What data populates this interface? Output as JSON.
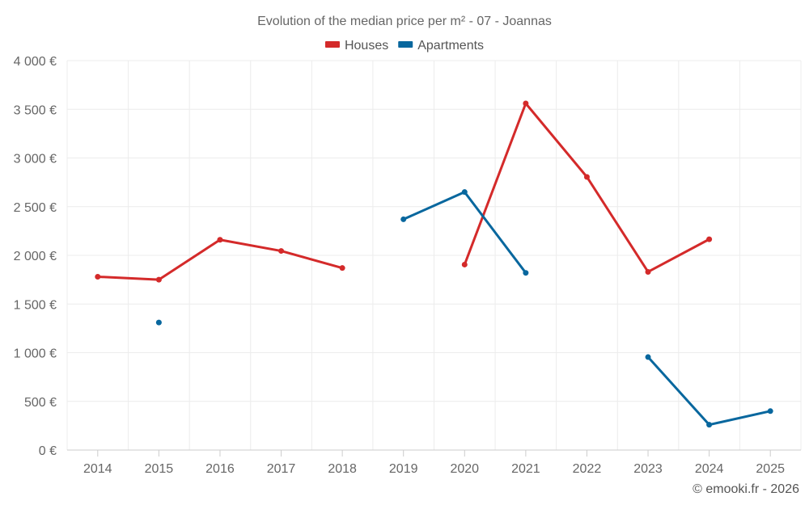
{
  "chart_data": {
    "type": "line",
    "title": "Evolution of the median price per m² - 07 - Joannas",
    "categories": [
      "2014",
      "2015",
      "2016",
      "2017",
      "2018",
      "2019",
      "2020",
      "2021",
      "2022",
      "2023",
      "2024",
      "2025"
    ],
    "ylim": [
      0,
      4000
    ],
    "ytick_values": [
      0,
      500,
      1000,
      1500,
      2000,
      2500,
      3000,
      3500,
      4000
    ],
    "ytick_labels": [
      "0 €",
      "500 €",
      "1 000 €",
      "1 500 €",
      "2 000 €",
      "2 500 €",
      "3 000 €",
      "3 500 €",
      "4 000 €"
    ],
    "xlabel": "",
    "ylabel": "",
    "legend_position": "top-center",
    "series": [
      {
        "name": "Houses",
        "color": "#d42a2a",
        "values": [
          1780,
          1750,
          2160,
          2045,
          1870,
          null,
          1905,
          3560,
          2805,
          1830,
          2165,
          null
        ]
      },
      {
        "name": "Apartments",
        "color": "#08679e",
        "values": [
          null,
          1310,
          null,
          null,
          null,
          2370,
          2650,
          1820,
          null,
          955,
          260,
          400
        ]
      }
    ]
  },
  "credit": "© emooki.fr - 2026"
}
